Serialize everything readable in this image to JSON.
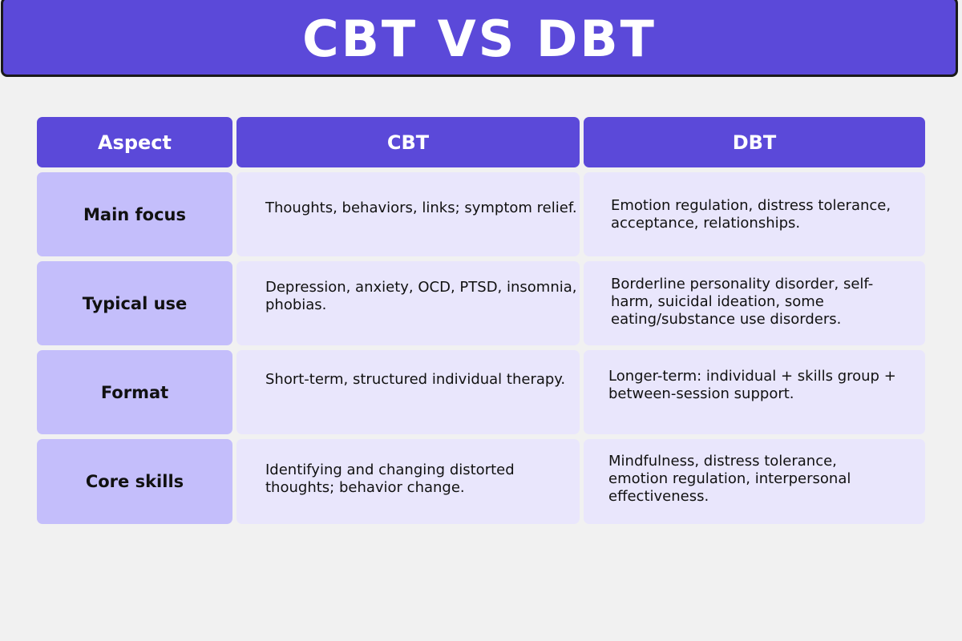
{
  "title": "CBT VS DBT",
  "table": {
    "headers": [
      "Aspect",
      "CBT",
      "DBT"
    ],
    "rows": [
      {
        "aspect": "Main focus",
        "cbt": "Thoughts, behaviors, links; symptom relief.",
        "dbt": "Emotion regulation, distress tolerance, acceptance, relationships."
      },
      {
        "aspect": "Typical use",
        "cbt": "Depression, anxiety, OCD, PTSD, insomnia, phobias.",
        "dbt": "Borderline personality disorder, self-harm, suicidal ideation, some eating/substance use disorders."
      },
      {
        "aspect": "Format",
        "cbt": "Short-term, structured individual therapy.",
        "dbt": "Longer-term: individual + skills group + between-session support."
      },
      {
        "aspect": "Core skills",
        "cbt": "Identifying and changing distorted thoughts; behavior change.",
        "dbt": "Mindfulness, distress tolerance, emotion regulation, interpersonal effectiveness."
      }
    ]
  },
  "colors": {
    "header_purple": "#5b49d9",
    "aspect_lavender": "#c4befb",
    "cell_light": "#e9e6fc",
    "background": "#f1f1f1"
  }
}
